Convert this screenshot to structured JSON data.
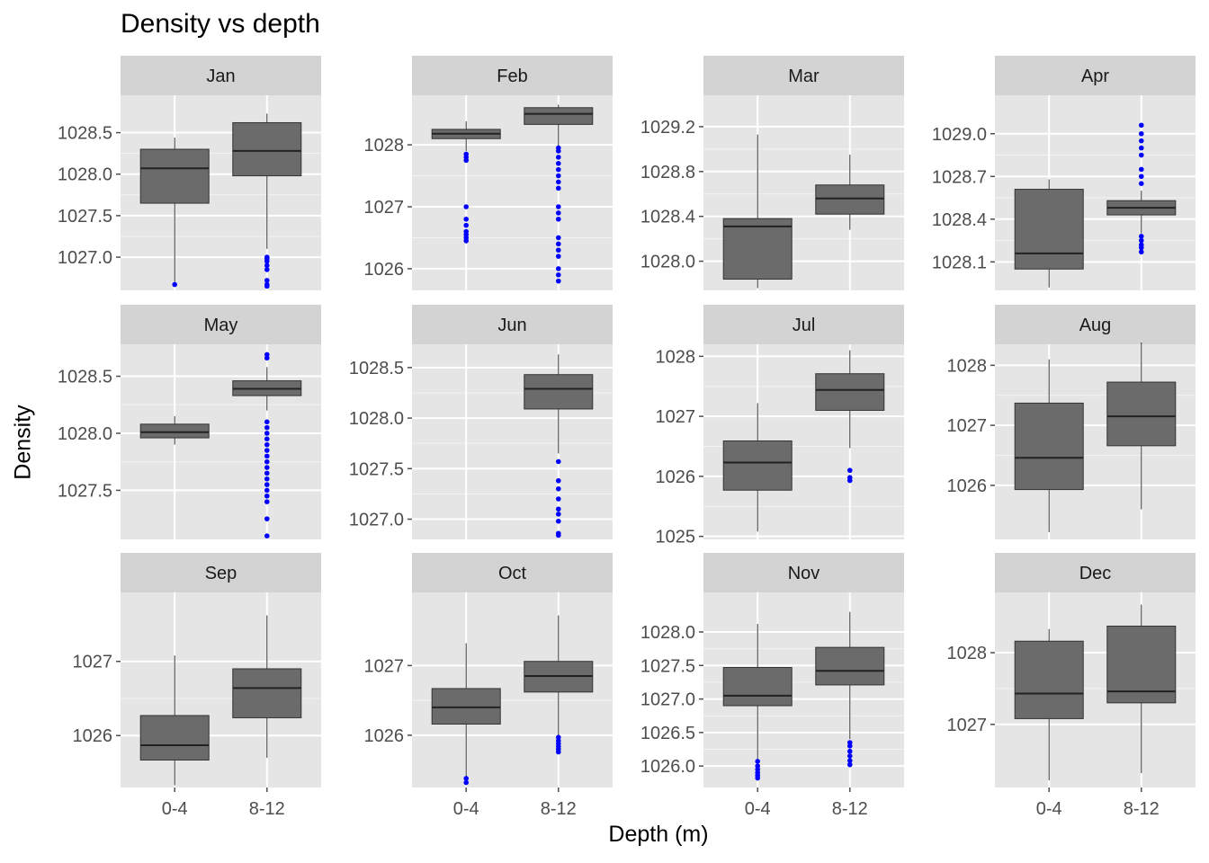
{
  "chart_data": {
    "type": "box",
    "title": "Density vs depth",
    "xlabel": "Depth (m)",
    "ylabel": "Density",
    "categories": [
      "0-4",
      "8-12"
    ],
    "outlier_color": "#0000ff",
    "box_fill": "#6b6b6b",
    "panel_background": "#e5e5e5",
    "strip_background": "#d3d3d3",
    "facet_scales": "free_y",
    "panels": [
      {
        "strip": "Jan",
        "ylim": [
          1026.6,
          1028.95
        ],
        "ticks": [
          {
            "v": 1027.0,
            "l": "1027.0"
          },
          {
            "v": 1027.5,
            "l": "1027.5"
          },
          {
            "v": 1028.0,
            "l": "1028.0"
          },
          {
            "v": 1028.5,
            "l": "1028.5"
          }
        ],
        "boxes": [
          {
            "cat": "0-4",
            "min": 1026.67,
            "q1": 1027.65,
            "median": 1028.07,
            "q3": 1028.3,
            "max": 1028.44,
            "outliers": [
              1026.67
            ]
          },
          {
            "cat": "8-12",
            "min": 1027.1,
            "q1": 1027.98,
            "median": 1028.28,
            "q3": 1028.62,
            "max": 1028.73,
            "outliers": [
              1027.0,
              1026.98,
              1026.95,
              1026.9,
              1026.85,
              1026.72,
              1026.67,
              1026.65
            ]
          }
        ]
      },
      {
        "strip": "Feb",
        "ylim": [
          1025.65,
          1028.8
        ],
        "ticks": [
          {
            "v": 1026,
            "l": "1026"
          },
          {
            "v": 1027,
            "l": "1027"
          },
          {
            "v": 1028,
            "l": "1028"
          }
        ],
        "boxes": [
          {
            "cat": "0-4",
            "min": 1027.9,
            "q1": 1028.1,
            "median": 1028.18,
            "q3": 1028.25,
            "max": 1028.38,
            "outliers": [
              1027.85,
              1027.8,
              1027.75,
              1027.0,
              1026.8,
              1026.7,
              1026.6,
              1026.55,
              1026.5,
              1026.45
            ]
          },
          {
            "cat": "8-12",
            "min": 1027.95,
            "q1": 1028.33,
            "median": 1028.5,
            "q3": 1028.6,
            "max": 1028.65,
            "outliers": [
              1027.95,
              1027.9,
              1027.8,
              1027.7,
              1027.6,
              1027.5,
              1027.4,
              1027.3,
              1027.0,
              1026.9,
              1026.8,
              1026.5,
              1026.4,
              1026.3,
              1026.2,
              1026.0,
              1025.9,
              1025.8
            ]
          }
        ]
      },
      {
        "strip": "Mar",
        "ylim": [
          1027.74,
          1029.48
        ],
        "ticks": [
          {
            "v": 1028.0,
            "l": "1028.0"
          },
          {
            "v": 1028.4,
            "l": "1028.4"
          },
          {
            "v": 1028.8,
            "l": "1028.8"
          },
          {
            "v": 1029.2,
            "l": "1029.2"
          }
        ],
        "boxes": [
          {
            "cat": "0-4",
            "min": 1027.76,
            "q1": 1027.84,
            "median": 1028.31,
            "q3": 1028.38,
            "max": 1029.13,
            "outliers": []
          },
          {
            "cat": "8-12",
            "min": 1028.28,
            "q1": 1028.42,
            "median": 1028.56,
            "q3": 1028.68,
            "max": 1028.95,
            "outliers": []
          }
        ]
      },
      {
        "strip": "Apr",
        "ylim": [
          1027.9,
          1029.27
        ],
        "ticks": [
          {
            "v": 1028.1,
            "l": "1028.1"
          },
          {
            "v": 1028.4,
            "l": "1028.4"
          },
          {
            "v": 1028.7,
            "l": "1028.7"
          },
          {
            "v": 1029.0,
            "l": "1029.0"
          }
        ],
        "boxes": [
          {
            "cat": "0-4",
            "min": 1027.92,
            "q1": 1028.05,
            "median": 1028.16,
            "q3": 1028.61,
            "max": 1028.68,
            "outliers": []
          },
          {
            "cat": "8-12",
            "min": 1028.3,
            "q1": 1028.43,
            "median": 1028.48,
            "q3": 1028.53,
            "max": 1028.6,
            "outliers": [
              1029.06,
              1029.0,
              1028.95,
              1028.9,
              1028.85,
              1028.75,
              1028.7,
              1028.65,
              1028.28,
              1028.25,
              1028.22,
              1028.2,
              1028.17
            ]
          }
        ]
      },
      {
        "strip": "May",
        "ylim": [
          1027.07,
          1028.78
        ],
        "ticks": [
          {
            "v": 1027.5,
            "l": "1027.5"
          },
          {
            "v": 1028.0,
            "l": "1028.0"
          },
          {
            "v": 1028.5,
            "l": "1028.5"
          }
        ],
        "boxes": [
          {
            "cat": "0-4",
            "min": 1027.9,
            "q1": 1027.96,
            "median": 1028.01,
            "q3": 1028.08,
            "max": 1028.15,
            "outliers": []
          },
          {
            "cat": "8-12",
            "min": 1028.2,
            "q1": 1028.33,
            "median": 1028.39,
            "q3": 1028.46,
            "max": 1028.58,
            "outliers": [
              1028.69,
              1028.66,
              1028.1,
              1028.05,
              1028.0,
              1027.95,
              1027.9,
              1027.85,
              1027.8,
              1027.75,
              1027.7,
              1027.65,
              1027.6,
              1027.55,
              1027.5,
              1027.45,
              1027.4,
              1027.25,
              1027.1
            ]
          }
        ]
      },
      {
        "strip": "Jun",
        "ylim": [
          1026.8,
          1028.73
        ],
        "ticks": [
          {
            "v": 1027.0,
            "l": "1027.0"
          },
          {
            "v": 1027.5,
            "l": "1027.5"
          },
          {
            "v": 1028.0,
            "l": "1028.0"
          },
          {
            "v": 1028.5,
            "l": "1028.5"
          }
        ],
        "boxes": [
          {
            "cat": "8-12",
            "min": 1027.65,
            "q1": 1028.09,
            "median": 1028.29,
            "q3": 1028.43,
            "max": 1028.63,
            "outliers": [
              1027.57,
              1027.38,
              1027.3,
              1027.2,
              1027.1,
              1027.05,
              1026.98,
              1026.86,
              1026.84
            ]
          }
        ]
      },
      {
        "strip": "Jul",
        "ylim": [
          1024.95,
          1028.2
        ],
        "ticks": [
          {
            "v": 1025,
            "l": "1025"
          },
          {
            "v": 1026,
            "l": "1026"
          },
          {
            "v": 1027,
            "l": "1027"
          },
          {
            "v": 1028,
            "l": "1028"
          }
        ],
        "boxes": [
          {
            "cat": "0-4",
            "min": 1025.08,
            "q1": 1025.77,
            "median": 1026.23,
            "q3": 1026.59,
            "max": 1027.22,
            "outliers": []
          },
          {
            "cat": "8-12",
            "min": 1026.47,
            "q1": 1027.1,
            "median": 1027.44,
            "q3": 1027.71,
            "max": 1028.1,
            "outliers": [
              1026.1,
              1025.98,
              1025.93
            ]
          }
        ]
      },
      {
        "strip": "Aug",
        "ylim": [
          1025.1,
          1028.35
        ],
        "ticks": [
          {
            "v": 1026,
            "l": "1026"
          },
          {
            "v": 1027,
            "l": "1027"
          },
          {
            "v": 1028,
            "l": "1028"
          }
        ],
        "boxes": [
          {
            "cat": "0-4",
            "min": 1025.22,
            "q1": 1025.93,
            "median": 1026.46,
            "q3": 1027.37,
            "max": 1028.1,
            "outliers": []
          },
          {
            "cat": "8-12",
            "min": 1025.6,
            "q1": 1026.66,
            "median": 1027.15,
            "q3": 1027.72,
            "max": 1028.38,
            "outliers": []
          }
        ]
      },
      {
        "strip": "Sep",
        "ylim": [
          1025.3,
          1027.93
        ],
        "ticks": [
          {
            "v": 1026,
            "l": "1026"
          },
          {
            "v": 1027,
            "l": "1027"
          }
        ],
        "boxes": [
          {
            "cat": "0-4",
            "min": 1025.33,
            "q1": 1025.67,
            "median": 1025.87,
            "q3": 1026.27,
            "max": 1027.08,
            "outliers": []
          },
          {
            "cat": "8-12",
            "min": 1025.7,
            "q1": 1026.24,
            "median": 1026.64,
            "q3": 1026.9,
            "max": 1027.62,
            "outliers": []
          }
        ]
      },
      {
        "strip": "Oct",
        "ylim": [
          1025.25,
          1028.05
        ],
        "ticks": [
          {
            "v": 1026,
            "l": "1026"
          },
          {
            "v": 1027,
            "l": "1027"
          }
        ],
        "boxes": [
          {
            "cat": "0-4",
            "min": 1025.4,
            "q1": 1026.16,
            "median": 1026.4,
            "q3": 1026.67,
            "max": 1027.32,
            "outliers": [
              1025.38,
              1025.32
            ]
          },
          {
            "cat": "8-12",
            "min": 1026.0,
            "q1": 1026.62,
            "median": 1026.85,
            "q3": 1027.06,
            "max": 1027.72,
            "outliers": [
              1025.97,
              1025.92,
              1025.88,
              1025.84,
              1025.8,
              1025.76
            ]
          }
        ]
      },
      {
        "strip": "Nov",
        "ylim": [
          1025.68,
          1028.59
        ],
        "ticks": [
          {
            "v": 1026.0,
            "l": "1026.0"
          },
          {
            "v": 1026.5,
            "l": "1026.5"
          },
          {
            "v": 1027.0,
            "l": "1027.0"
          },
          {
            "v": 1027.5,
            "l": "1027.5"
          },
          {
            "v": 1028.0,
            "l": "1028.0"
          }
        ],
        "boxes": [
          {
            "cat": "0-4",
            "min": 1026.08,
            "q1": 1026.9,
            "median": 1027.05,
            "q3": 1027.47,
            "max": 1028.12,
            "outliers": [
              1026.07,
              1026.0,
              1025.95,
              1025.9,
              1025.86,
              1025.82
            ]
          },
          {
            "cat": "8-12",
            "min": 1026.4,
            "q1": 1027.21,
            "median": 1027.42,
            "q3": 1027.77,
            "max": 1028.3,
            "outliers": [
              1026.35,
              1026.3,
              1026.22,
              1026.15,
              1026.08,
              1026.02
            ]
          }
        ]
      },
      {
        "strip": "Dec",
        "ylim": [
          1026.12,
          1028.84
        ],
        "ticks": [
          {
            "v": 1027,
            "l": "1027"
          },
          {
            "v": 1028,
            "l": "1028"
          }
        ],
        "boxes": [
          {
            "cat": "0-4",
            "min": 1026.22,
            "q1": 1027.08,
            "median": 1027.43,
            "q3": 1028.16,
            "max": 1028.33,
            "outliers": []
          },
          {
            "cat": "8-12",
            "min": 1026.32,
            "q1": 1027.3,
            "median": 1027.46,
            "q3": 1028.37,
            "max": 1028.67,
            "outliers": []
          }
        ]
      }
    ]
  }
}
